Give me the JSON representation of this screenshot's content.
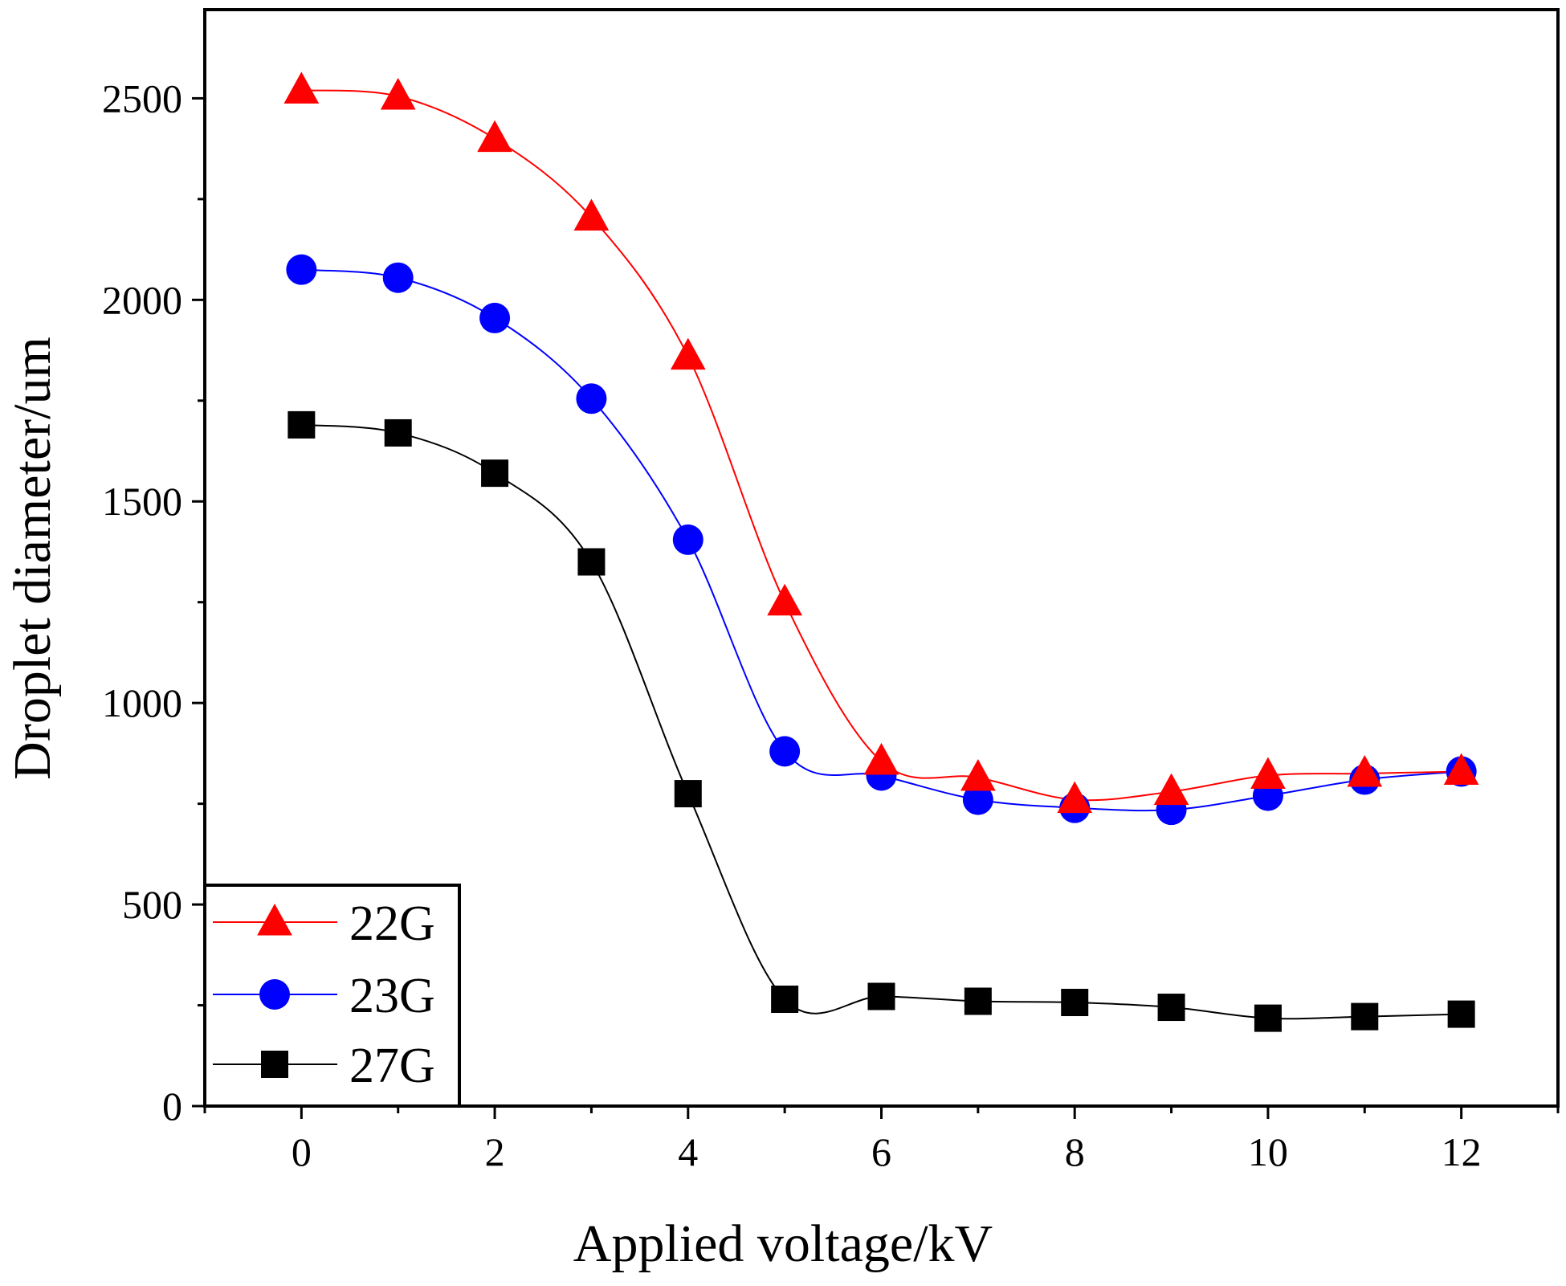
{
  "chart_data": {
    "type": "line",
    "title": "",
    "xlabel": "Applied voltage/kV",
    "ylabel": "Droplet diameter/um",
    "xlim": [
      -1,
      13
    ],
    "ylim": [
      0,
      2720
    ],
    "x_ticks": [
      0,
      2,
      4,
      6,
      8,
      10,
      12
    ],
    "x_tick_labels": [
      "0",
      "2",
      "4",
      "6",
      "8",
      "10",
      "12"
    ],
    "y_ticks": [
      0,
      500,
      1000,
      1500,
      2000,
      2500
    ],
    "y_tick_labels": [
      "0",
      "500",
      "1000",
      "1500",
      "2000",
      "2500"
    ],
    "grid": false,
    "legend_position": "bottom-left",
    "x": [
      0,
      1,
      2,
      3,
      4,
      5,
      6,
      7,
      8,
      9,
      10,
      11,
      12
    ],
    "series": [
      {
        "name": "22G",
        "marker": "triangle",
        "color": "#ff0000",
        "values": [
          2520,
          2505,
          2400,
          2205,
          1860,
          1250,
          855,
          815,
          760,
          780,
          820,
          825,
          830
        ]
      },
      {
        "name": "23G",
        "marker": "circle",
        "color": "#0000ff",
        "values": [
          2075,
          2055,
          1955,
          1755,
          1405,
          880,
          820,
          760,
          740,
          735,
          770,
          810,
          830
        ]
      },
      {
        "name": "27G",
        "marker": "square",
        "color": "#000000",
        "values": [
          1690,
          1670,
          1570,
          1350,
          775,
          265,
          272,
          260,
          257,
          245,
          218,
          222,
          228
        ]
      }
    ]
  }
}
